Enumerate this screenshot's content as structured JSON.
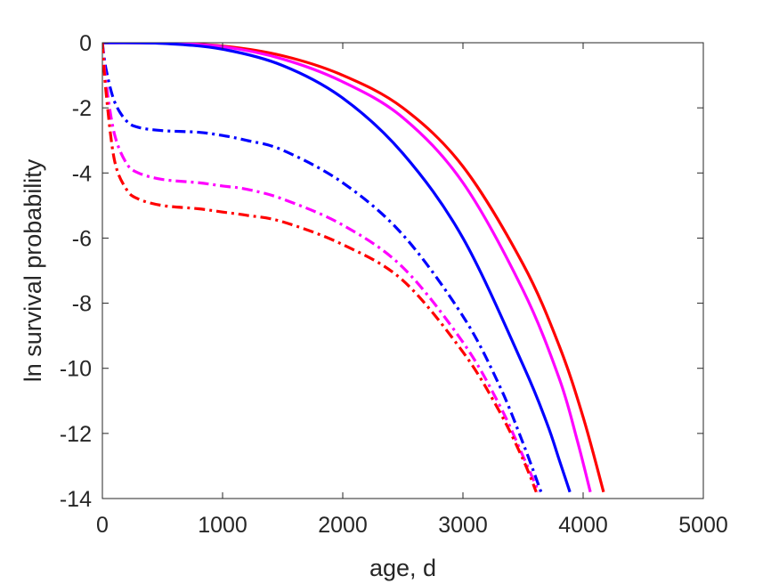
{
  "chart_data": {
    "type": "line",
    "title": "",
    "xlabel": "age, d",
    "ylabel": "ln survival probability",
    "xlim": [
      0,
      5000
    ],
    "ylim": [
      -14,
      0
    ],
    "xticks": [
      0,
      1000,
      2000,
      3000,
      4000,
      5000
    ],
    "yticks": [
      0,
      -2,
      -4,
      -6,
      -8,
      -10,
      -12,
      -14
    ],
    "xtick_labels": [
      "0",
      "1000",
      "2000",
      "3000",
      "4000",
      "5000"
    ],
    "ytick_labels": [
      "0",
      "-2",
      "-4",
      "-6",
      "-8",
      "-10",
      "-12",
      "-14"
    ],
    "grid": false,
    "legend": "none",
    "series": [
      {
        "color": "#ff0000",
        "style": "solid",
        "x": [
          0,
          500,
          1000,
          1500,
          2000,
          2500,
          3000,
          3500,
          3800,
          4000,
          4170
        ],
        "y": [
          0,
          -0.01,
          -0.1,
          -0.4,
          -1.0,
          -2.0,
          -3.8,
          -6.8,
          -9.3,
          -11.5,
          -13.8
        ]
      },
      {
        "color": "#ff00ff",
        "style": "solid",
        "x": [
          0,
          500,
          1000,
          1500,
          2000,
          2500,
          3000,
          3500,
          3800,
          3950,
          4060
        ],
        "y": [
          0,
          -0.01,
          -0.12,
          -0.5,
          -1.2,
          -2.3,
          -4.3,
          -7.6,
          -10.3,
          -12.2,
          -13.8
        ]
      },
      {
        "color": "#0000ff",
        "style": "solid",
        "x": [
          0,
          500,
          1000,
          1500,
          2000,
          2500,
          3000,
          3500,
          3700,
          3800,
          3890
        ],
        "y": [
          0,
          -0.02,
          -0.2,
          -0.7,
          -1.7,
          -3.4,
          -6.0,
          -9.9,
          -11.7,
          -12.8,
          -13.8
        ]
      },
      {
        "color": "#0000ff",
        "style": "dashdot",
        "x": [
          0,
          30,
          100,
          200,
          300,
          500,
          800,
          1000,
          1200,
          1500,
          2000,
          2500,
          3000,
          3300,
          3500,
          3650
        ],
        "y": [
          0,
          -0.8,
          -1.8,
          -2.4,
          -2.6,
          -2.7,
          -2.75,
          -2.85,
          -3.0,
          -3.3,
          -4.3,
          -5.9,
          -8.4,
          -10.5,
          -12.3,
          -13.8
        ]
      },
      {
        "color": "#ff00ff",
        "style": "dashdot",
        "x": [
          0,
          30,
          100,
          200,
          300,
          500,
          800,
          1000,
          1200,
          1500,
          2000,
          2500,
          3000,
          3300,
          3500,
          3630
        ],
        "y": [
          0,
          -1.2,
          -2.8,
          -3.7,
          -4.0,
          -4.2,
          -4.3,
          -4.4,
          -4.5,
          -4.8,
          -5.6,
          -6.9,
          -9.2,
          -11.1,
          -12.7,
          -13.8
        ]
      },
      {
        "color": "#ff0000",
        "style": "dashdot",
        "x": [
          0,
          30,
          100,
          200,
          300,
          500,
          800,
          1000,
          1200,
          1500,
          2000,
          2500,
          3000,
          3300,
          3500,
          3610
        ],
        "y": [
          0,
          -1.5,
          -3.6,
          -4.5,
          -4.8,
          -5.0,
          -5.1,
          -5.2,
          -5.3,
          -5.5,
          -6.2,
          -7.3,
          -9.5,
          -11.3,
          -12.8,
          -13.8
        ]
      }
    ]
  }
}
